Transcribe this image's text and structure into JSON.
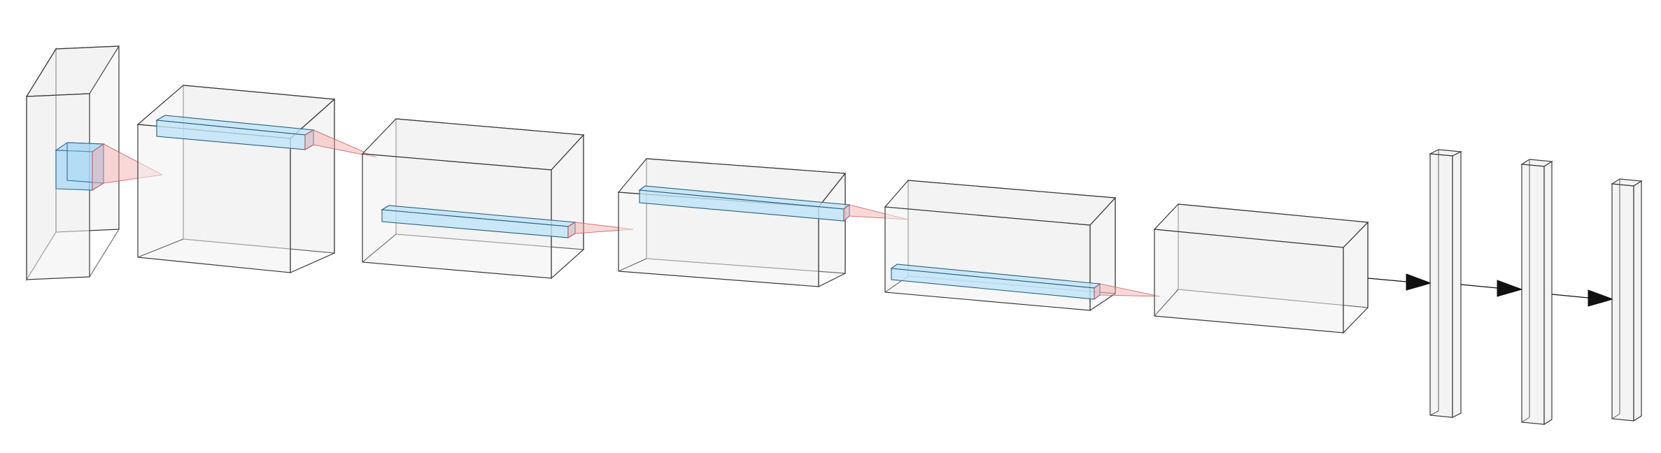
{
  "diagram": {
    "kind": "cnn-architecture",
    "colors": {
      "volume": "#f0f0f0",
      "edge": "#3a3a3a",
      "kernel": "#a9d8f5",
      "receptive_field": "#f3a8a8",
      "arrow": "#111111"
    },
    "volumes": [
      {
        "id": "input-volume"
      },
      {
        "id": "conv-volume-1"
      },
      {
        "id": "conv-volume-2"
      },
      {
        "id": "conv-volume-3"
      },
      {
        "id": "conv-volume-4"
      },
      {
        "id": "conv-volume-5"
      }
    ],
    "dense_layers": [
      {
        "id": "dense-layer-1"
      },
      {
        "id": "dense-layer-2"
      },
      {
        "id": "dense-layer-3"
      }
    ]
  }
}
